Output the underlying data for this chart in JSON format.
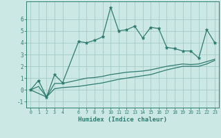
{
  "xlabel": "Humidex (Indice chaleur)",
  "line_color": "#2d7b6f",
  "bg_color": "#cce8e4",
  "grid_color": "#aacfca",
  "xlim": [
    -0.5,
    23.5
  ],
  "ylim": [
    -1.5,
    7.5
  ],
  "xticks": [
    0,
    1,
    2,
    3,
    4,
    6,
    7,
    8,
    9,
    10,
    11,
    12,
    13,
    14,
    15,
    16,
    17,
    18,
    19,
    20,
    21,
    22,
    23
  ],
  "yticks": [
    -1,
    0,
    1,
    2,
    3,
    4,
    5,
    6
  ],
  "main_x": [
    0,
    1,
    2,
    3,
    4,
    6,
    7,
    8,
    9,
    10,
    11,
    12,
    13,
    14,
    15,
    16,
    17,
    18,
    19,
    20,
    21,
    22,
    23
  ],
  "main_y": [
    0.0,
    0.8,
    -0.6,
    1.3,
    0.6,
    4.1,
    4.0,
    4.2,
    4.5,
    7.0,
    5.0,
    5.1,
    5.4,
    4.4,
    5.3,
    5.2,
    3.6,
    3.5,
    3.3,
    3.3,
    2.7,
    5.1,
    4.0
  ],
  "lower1_x": [
    0,
    1,
    2,
    3,
    4,
    6,
    7,
    8,
    9,
    10,
    11,
    12,
    13,
    14,
    15,
    16,
    17,
    18,
    19,
    20,
    21,
    22,
    23
  ],
  "lower1_y": [
    0.0,
    0.3,
    -0.6,
    0.55,
    0.55,
    0.85,
    1.0,
    1.05,
    1.15,
    1.3,
    1.4,
    1.5,
    1.55,
    1.6,
    1.7,
    1.85,
    2.0,
    2.1,
    2.2,
    2.15,
    2.2,
    2.4,
    2.6
  ],
  "lower2_x": [
    0,
    2,
    3,
    4,
    6,
    7,
    8,
    9,
    10,
    11,
    12,
    13,
    14,
    15,
    16,
    17,
    18,
    19,
    20,
    21,
    22,
    23
  ],
  "lower2_y": [
    0.0,
    -0.6,
    0.1,
    0.2,
    0.3,
    0.4,
    0.5,
    0.6,
    0.75,
    0.9,
    1.0,
    1.1,
    1.2,
    1.3,
    1.5,
    1.7,
    1.85,
    2.0,
    2.0,
    2.0,
    2.2,
    2.5
  ]
}
